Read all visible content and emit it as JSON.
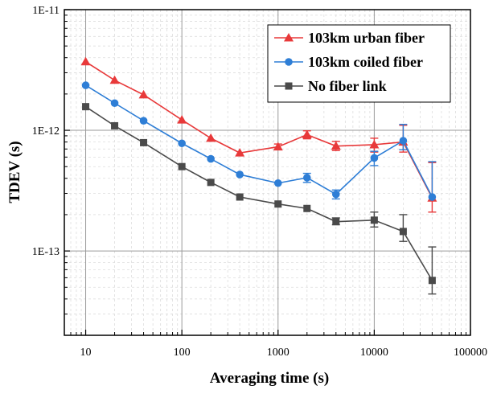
{
  "chart_data": {
    "type": "line",
    "xlabel": "Averaging time (s)",
    "ylabel": "TDEV (s)",
    "x_scale": "log",
    "y_scale": "log",
    "xlim": [
      6,
      100000
    ],
    "ylim": [
      2e-14,
      1e-11
    ],
    "x_ticks": [
      {
        "value": 10,
        "label": "10"
      },
      {
        "value": 100,
        "label": "100"
      },
      {
        "value": 1000,
        "label": "1000"
      },
      {
        "value": 10000,
        "label": "10000"
      },
      {
        "value": 100000,
        "label": "100000"
      }
    ],
    "y_ticks": [
      {
        "value": 1e-13,
        "label": "1E-13"
      },
      {
        "value": 1e-12,
        "label": "1E-12"
      },
      {
        "value": 1e-11,
        "label": "1E-11"
      }
    ],
    "grid": true,
    "legend_position": "top-right",
    "series": [
      {
        "name": "103km urban fiber",
        "color": "#e8393a",
        "marker": "triangle",
        "x": [
          10,
          20,
          40,
          100,
          200,
          400,
          1000,
          2000,
          4000,
          10000,
          20000,
          40000
        ],
        "y": [
          3.7e-12,
          2.6e-12,
          1.97e-12,
          1.22e-12,
          8.6e-13,
          6.5e-13,
          7.3e-13,
          9.2e-13,
          7.4e-13,
          7.6e-13,
          8e-13,
          2.75e-13
        ],
        "err_low": [
          null,
          null,
          null,
          null,
          null,
          null,
          6.9e-13,
          8.5e-13,
          6.8e-13,
          6.6e-13,
          6.6e-13,
          2.1e-13
        ],
        "err_high": [
          null,
          null,
          null,
          null,
          null,
          null,
          7.7e-13,
          9.9e-13,
          8.1e-13,
          8.6e-13,
          1.1e-12,
          5.4e-13
        ]
      },
      {
        "name": "103km coiled fiber",
        "color": "#2e7ed6",
        "marker": "circle",
        "x": [
          10,
          20,
          40,
          100,
          200,
          400,
          1000,
          2000,
          4000,
          10000,
          20000,
          40000
        ],
        "y": [
          2.36e-12,
          1.68e-12,
          1.2e-12,
          7.8e-13,
          5.8e-13,
          4.3e-13,
          3.65e-13,
          4.05e-13,
          2.95e-13,
          5.9e-13,
          8.2e-13,
          2.8e-13
        ],
        "err_low": [
          null,
          null,
          null,
          null,
          null,
          null,
          null,
          3.7e-13,
          2.7e-13,
          5.1e-13,
          6.9e-13,
          null
        ],
        "err_high": [
          null,
          null,
          null,
          null,
          null,
          null,
          null,
          4.4e-13,
          3.2e-13,
          6.7e-13,
          1.12e-12,
          5.5e-13
        ]
      },
      {
        "name": "No fiber link",
        "color": "#4a4a4a",
        "marker": "square",
        "x": [
          10,
          20,
          40,
          100,
          200,
          400,
          1000,
          2000,
          4000,
          10000,
          20000,
          40000
        ],
        "y": [
          1.57e-12,
          1.09e-12,
          7.9e-13,
          5e-13,
          3.7e-13,
          2.8e-13,
          2.45e-13,
          2.25e-13,
          1.75e-13,
          1.8e-13,
          1.45e-13,
          5.7e-14
        ],
        "err_low": [
          null,
          null,
          null,
          null,
          null,
          null,
          null,
          null,
          1.65e-13,
          1.58e-13,
          1.2e-13,
          4.4e-14
        ],
        "err_high": [
          null,
          null,
          null,
          null,
          null,
          null,
          null,
          null,
          1.88e-13,
          2.1e-13,
          2e-13,
          1.08e-13
        ]
      }
    ]
  }
}
